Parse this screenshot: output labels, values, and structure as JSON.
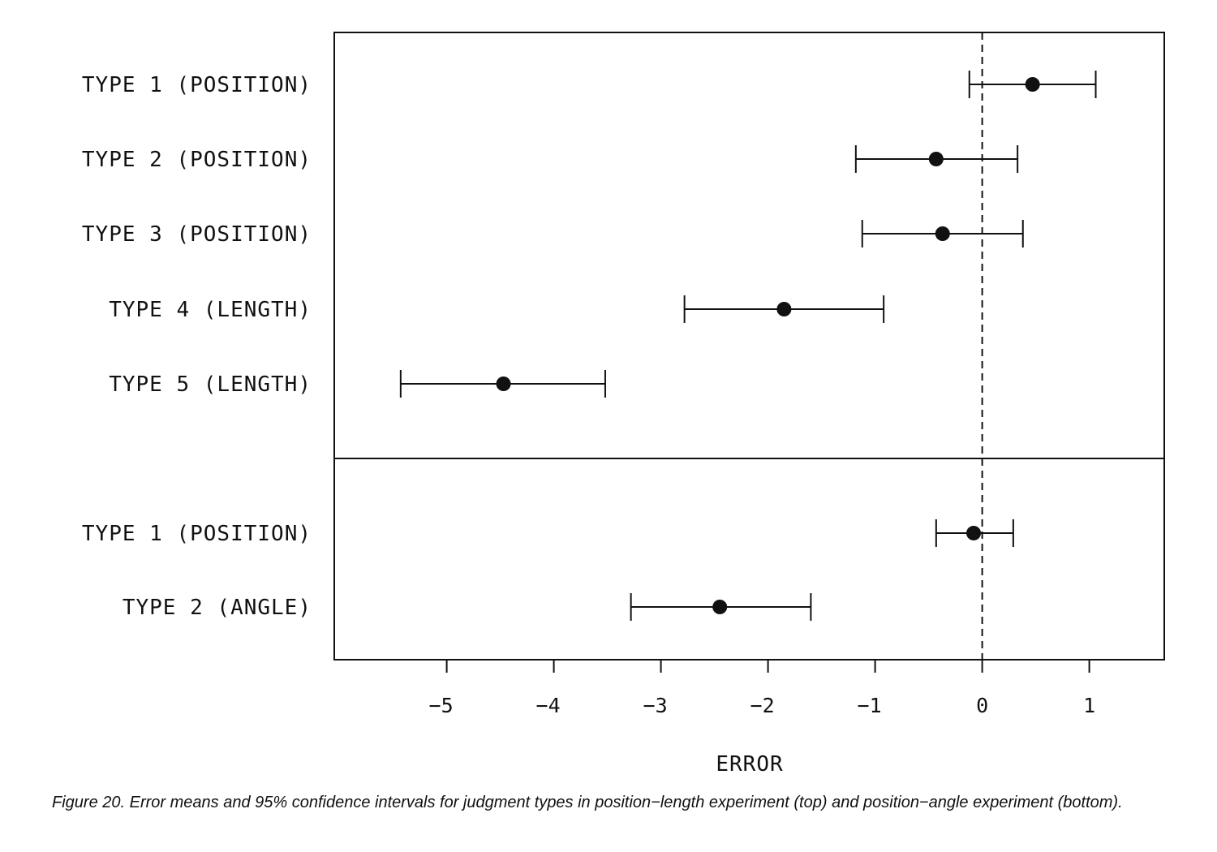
{
  "chart_data": {
    "type": "scatter",
    "subtype": "dot-plot with 95% confidence intervals",
    "xlabel": "ERROR",
    "xlim": [
      -6.05,
      1.7
    ],
    "xticks": [
      -5,
      -4,
      -3,
      -2,
      -1,
      0,
      1
    ],
    "xtick_labels": [
      "−5",
      "−4",
      "−3",
      "−2",
      "−1",
      "0",
      "1"
    ],
    "reference_line": {
      "x": 0,
      "style": "dashed"
    },
    "grid": false,
    "legend": "none",
    "panels": [
      {
        "name": "position-length experiment",
        "position": "top",
        "points": [
          {
            "label": "TYPE 1 (POSITION)",
            "mean": 0.47,
            "lower": -0.12,
            "upper": 1.06
          },
          {
            "label": "TYPE 2 (POSITION)",
            "mean": -0.43,
            "lower": -1.18,
            "upper": 0.33
          },
          {
            "label": "TYPE 3 (POSITION)",
            "mean": -0.37,
            "lower": -1.12,
            "upper": 0.38
          },
          {
            "label": "TYPE 4 (LENGTH)",
            "mean": -1.85,
            "lower": -2.78,
            "upper": -0.92
          },
          {
            "label": "TYPE 5 (LENGTH)",
            "mean": -4.47,
            "lower": -5.43,
            "upper": -3.52
          }
        ]
      },
      {
        "name": "position-angle experiment",
        "position": "bottom",
        "points": [
          {
            "label": "TYPE 1 (POSITION)",
            "mean": -0.08,
            "lower": -0.43,
            "upper": 0.29
          },
          {
            "label": "TYPE 2 (ANGLE)",
            "mean": -2.45,
            "lower": -3.28,
            "upper": -1.6
          }
        ]
      }
    ]
  },
  "caption": "Figure 20. Error means and 95% confidence intervals for judgment types in position−length experiment (top) and position−angle experiment (bottom)."
}
